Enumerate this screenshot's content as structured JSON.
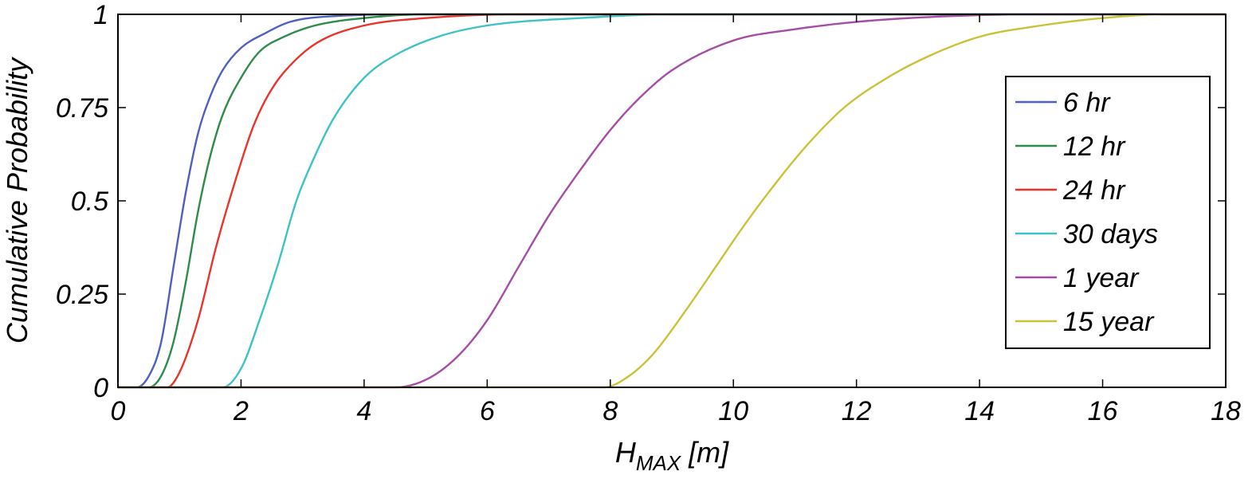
{
  "chart_data": {
    "type": "line",
    "title": "",
    "xlabel": "H",
    "xlabel_sub": "MAX",
    "xlabel_unit": " [m]",
    "ylabel": "Cumulative Probability",
    "xlim": [
      0,
      18
    ],
    "ylim": [
      0,
      1
    ],
    "x_ticks": [
      0,
      2,
      4,
      6,
      8,
      10,
      12,
      14,
      16,
      18
    ],
    "x_tick_labels": [
      "0",
      "2",
      "4",
      "6",
      "8",
      "10",
      "12",
      "14",
      "16",
      "18"
    ],
    "y_ticks": [
      0,
      0.25,
      0.5,
      0.75,
      1
    ],
    "y_tick_labels": [
      "0",
      "0.25",
      "0.5",
      "0.75",
      "1"
    ],
    "grid": false,
    "legend_position": "right",
    "series": [
      {
        "name": "6 hr",
        "color": "#4f5fbf",
        "x": [
          0,
          0.3,
          0.5,
          0.7,
          0.9,
          1.1,
          1.3,
          1.5,
          1.7,
          2.0,
          2.4,
          2.8,
          3.5,
          5,
          18
        ],
        "y": [
          0,
          0,
          0.03,
          0.12,
          0.32,
          0.52,
          0.68,
          0.78,
          0.85,
          0.91,
          0.95,
          0.98,
          0.995,
          1,
          1
        ]
      },
      {
        "name": "12 hr",
        "color": "#2e8b4a",
        "x": [
          0,
          0.5,
          0.7,
          0.9,
          1.1,
          1.3,
          1.5,
          1.7,
          2.0,
          2.3,
          2.7,
          3.2,
          4.0,
          5,
          18
        ],
        "y": [
          0,
          0,
          0.03,
          0.12,
          0.28,
          0.47,
          0.62,
          0.73,
          0.83,
          0.9,
          0.94,
          0.97,
          0.99,
          1,
          1
        ]
      },
      {
        "name": "24 hr",
        "color": "#e8342a",
        "x": [
          0,
          0.8,
          1.0,
          1.3,
          1.6,
          1.9,
          2.2,
          2.5,
          2.9,
          3.3,
          4.0,
          5.0,
          6.5,
          18
        ],
        "y": [
          0,
          0,
          0.04,
          0.18,
          0.38,
          0.55,
          0.7,
          0.8,
          0.88,
          0.93,
          0.97,
          0.99,
          1,
          1
        ]
      },
      {
        "name": "30 days",
        "color": "#3dc3c3",
        "x": [
          0,
          1.7,
          2.0,
          2.3,
          2.6,
          2.9,
          3.2,
          3.5,
          4.0,
          4.5,
          5.2,
          6.0,
          7.5,
          9,
          18
        ],
        "y": [
          0,
          0,
          0.05,
          0.18,
          0.33,
          0.5,
          0.62,
          0.72,
          0.83,
          0.89,
          0.94,
          0.97,
          0.99,
          1,
          1
        ]
      },
      {
        "name": "1 year",
        "color": "#a64ca6",
        "x": [
          0,
          4.5,
          5.0,
          5.5,
          6.0,
          6.5,
          7.0,
          7.5,
          8.0,
          8.5,
          9.0,
          10.0,
          11.0,
          12.0,
          13.5,
          15,
          18
        ],
        "y": [
          0,
          0,
          0.02,
          0.08,
          0.18,
          0.32,
          0.46,
          0.58,
          0.69,
          0.78,
          0.85,
          0.93,
          0.96,
          0.98,
          0.995,
          1,
          1
        ]
      },
      {
        "name": "15 year",
        "color": "#c9c238",
        "x": [
          0,
          7.9,
          8.3,
          8.7,
          9.2,
          9.7,
          10.2,
          10.7,
          11.2,
          11.8,
          12.5,
          13.2,
          14.0,
          15.0,
          16.0,
          17.0,
          18
        ],
        "y": [
          0,
          0,
          0.03,
          0.09,
          0.2,
          0.32,
          0.44,
          0.55,
          0.65,
          0.75,
          0.83,
          0.89,
          0.94,
          0.97,
          0.99,
          1,
          1
        ]
      }
    ]
  }
}
